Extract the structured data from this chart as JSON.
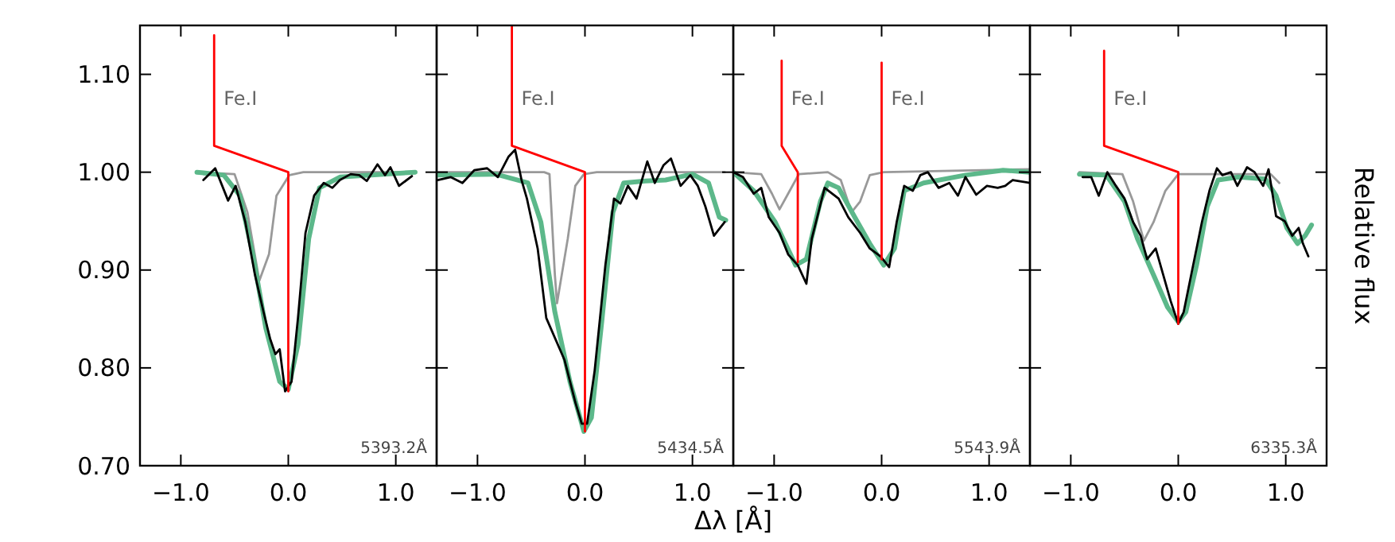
{
  "chart_data": [
    {
      "type": "line",
      "xlim": [
        -1.38,
        1.38
      ],
      "ylim": [
        0.7,
        1.15
      ],
      "xticks": [
        {
          "value": -1,
          "label": "−1.0"
        },
        {
          "value": 0,
          "label": "0.0"
        },
        {
          "value": 1,
          "label": "1.0"
        }
      ],
      "yticks": [
        {
          "value": 0.7,
          "label": "0.70"
        },
        {
          "value": 0.8,
          "label": "0.80"
        },
        {
          "value": 0.9,
          "label": "0.90"
        },
        {
          "value": 1.0,
          "label": "1.00"
        },
        {
          "value": 1.1,
          "label": "1.10"
        }
      ],
      "grid": false,
      "marker": "none",
      "line_style": "solid",
      "series": [
        {
          "color": "#999999",
          "x": [
            -0.85,
            -0.5,
            -0.38,
            -0.27,
            -0.18,
            -0.11,
            0.01,
            0.14,
            1.18
          ],
          "values": [
            1.0,
            0.998,
            0.959,
            0.889,
            0.916,
            0.976,
            0.997,
            1.0,
            1.0
          ]
        },
        {
          "color": "#5cb88a",
          "x": [
            -0.85,
            -0.6,
            -0.45,
            -0.33,
            -0.21,
            -0.08,
            0,
            0.09,
            0.19,
            0.29,
            0.48,
            1.18
          ],
          "values": [
            1.0,
            0.997,
            0.976,
            0.916,
            0.841,
            0.786,
            0.778,
            0.824,
            0.932,
            0.984,
            0.995,
            1.0
          ]
        },
        {
          "color": "#000000",
          "x": [
            -0.79,
            -0.68,
            -0.56,
            -0.49,
            -0.4,
            -0.31,
            -0.23,
            -0.17,
            -0.12,
            -0.08,
            -0.03,
            0.03,
            0.09,
            0.16,
            0.24,
            0.33,
            0.41,
            0.48,
            0.58,
            0.66,
            0.73,
            0.83,
            0.9,
            0.95,
            1.03,
            1.15
          ],
          "values": [
            0.992,
            1.004,
            0.971,
            0.986,
            0.949,
            0.895,
            0.857,
            0.83,
            0.814,
            0.819,
            0.776,
            0.786,
            0.851,
            0.938,
            0.976,
            0.989,
            0.984,
            0.992,
            0.998,
            0.997,
            0.991,
            1.008,
            0.997,
            1.005,
            0.986,
            0.996
          ]
        },
        {
          "color": "#ff0000",
          "x": [
            -0.69,
            -0.69,
            0,
            0
          ],
          "values": [
            1.14,
            1.027,
            1.0,
            0.776
          ]
        }
      ],
      "annotations": [
        "Fe.I",
        "5393.2Å"
      ]
    },
    {
      "type": "line",
      "xlim": [
        -1.38,
        1.38
      ],
      "ylim": [
        0.7,
        1.15
      ],
      "tick_labels": "x",
      "xlabel": "Δλ [Å]",
      "xticks": [
        {
          "value": -1,
          "label": "−1.0"
        },
        {
          "value": 0,
          "label": "0.0"
        },
        {
          "value": 1,
          "label": "1.0"
        }
      ],
      "yticks": [
        {
          "value": 0.7,
          "label": null
        },
        {
          "value": 0.8,
          "label": null
        },
        {
          "value": 0.9,
          "label": null
        },
        {
          "value": 1.0,
          "label": null
        },
        {
          "value": 1.1,
          "label": null
        }
      ],
      "grid": false,
      "marker": "none",
      "line_style": "solid",
      "series": [
        {
          "color": "#999999",
          "x": [
            -1.37,
            -0.38,
            -0.33,
            -0.28,
            -0.26,
            -0.16,
            -0.09,
            -0.01,
            0.11,
            1.3
          ],
          "values": [
            1.0,
            1.0,
            0.998,
            0.895,
            0.866,
            0.932,
            0.986,
            0.998,
            1.0,
            1.0
          ]
        },
        {
          "color": "#5cb88a",
          "x": [
            -1.37,
            -0.83,
            -0.53,
            -0.41,
            -0.28,
            -0.14,
            -0.01,
            0.06,
            0.16,
            0.26,
            0.36,
            0.56,
            0.75,
            1.0,
            1.15,
            1.25,
            1.31
          ],
          "values": [
            0.997,
            0.998,
            0.989,
            0.949,
            0.857,
            0.786,
            0.735,
            0.749,
            0.851,
            0.959,
            0.989,
            0.991,
            0.992,
            0.998,
            0.989,
            0.954,
            0.951
          ]
        },
        {
          "color": "#000000",
          "x": [
            -1.37,
            -1.25,
            -1.14,
            -1.03,
            -0.91,
            -0.81,
            -0.71,
            -0.65,
            -0.59,
            -0.54,
            -0.44,
            -0.36,
            -0.19,
            -0.09,
            -0.03,
            0.02,
            0.09,
            0.19,
            0.27,
            0.33,
            0.4,
            0.48,
            0.58,
            0.65,
            0.73,
            0.8,
            0.89,
            0.98,
            1.05,
            1.12,
            1.2,
            1.3
          ],
          "values": [
            0.992,
            0.995,
            0.989,
            1.002,
            1.004,
            0.995,
            1.016,
            1.023,
            0.992,
            0.973,
            0.922,
            0.851,
            0.808,
            0.765,
            0.743,
            0.743,
            0.797,
            0.905,
            0.973,
            0.968,
            0.986,
            0.973,
            1.011,
            0.989,
            1.007,
            1.014,
            0.986,
            0.997,
            0.986,
            0.965,
            0.935,
            0.949
          ]
        },
        {
          "color": "#ff0000",
          "x": [
            -0.68,
            -0.68,
            0,
            0
          ],
          "values": [
            1.15,
            1.027,
            1.0,
            0.735
          ]
        }
      ],
      "annotations": [
        "Fe.I",
        "5434.5Å"
      ]
    },
    {
      "type": "line",
      "xlim": [
        -1.38,
        1.38
      ],
      "ylim": [
        0.7,
        1.15
      ],
      "tick_labels": "x",
      "xticks": [
        {
          "value": -1,
          "label": "−1.0"
        },
        {
          "value": 0,
          "label": "0.0"
        },
        {
          "value": 1,
          "label": "1.0"
        }
      ],
      "yticks": [
        {
          "value": 0.7,
          "label": null
        },
        {
          "value": 0.8,
          "label": null
        },
        {
          "value": 0.9,
          "label": null
        },
        {
          "value": 1.0,
          "label": null
        },
        {
          "value": 1.1,
          "label": null
        }
      ],
      "grid": false,
      "marker": "none",
      "line_style": "solid",
      "series": [
        {
          "color": "#999999",
          "x": [
            -1.38,
            -1.12,
            -1.02,
            -0.95,
            -0.87,
            -0.77,
            -0.5,
            -0.38,
            -0.28,
            -0.2,
            -0.11,
            0.02,
            1.38
          ],
          "values": [
            1.0,
            0.998,
            0.978,
            0.962,
            0.978,
            0.998,
            1.0,
            0.992,
            0.959,
            0.97,
            0.997,
            1.0,
            1.003
          ]
        },
        {
          "color": "#5cb88a",
          "x": [
            -1.38,
            -1.19,
            -0.99,
            -0.8,
            -0.7,
            -0.57,
            -0.5,
            -0.4,
            -0.25,
            -0.11,
            0.02,
            0.12,
            0.21,
            0.39,
            0.78,
            1.13,
            1.38
          ],
          "values": [
            1.0,
            0.981,
            0.949,
            0.905,
            0.911,
            0.97,
            0.989,
            0.984,
            0.954,
            0.927,
            0.905,
            0.922,
            0.981,
            0.989,
            0.997,
            1.002,
            1.0
          ]
        },
        {
          "color": "#000000",
          "x": [
            -1.38,
            -1.29,
            -1.19,
            -1.12,
            -1.05,
            -0.95,
            -0.87,
            -0.78,
            -0.7,
            -0.65,
            -0.53,
            -0.4,
            -0.31,
            -0.2,
            -0.11,
            -0.01,
            0.07,
            0.14,
            0.21,
            0.29,
            0.36,
            0.43,
            0.53,
            0.63,
            0.71,
            0.78,
            0.88,
            0.98,
            1.08,
            1.15,
            1.22,
            1.38
          ],
          "values": [
            1.0,
            0.995,
            0.978,
            0.984,
            0.954,
            0.938,
            0.916,
            0.905,
            0.886,
            0.932,
            0.984,
            0.973,
            0.954,
            0.938,
            0.922,
            0.914,
            0.903,
            0.949,
            0.986,
            0.981,
            0.997,
            1.0,
            0.984,
            0.989,
            0.976,
            0.995,
            0.977,
            0.986,
            0.984,
            0.986,
            0.992,
            0.989
          ]
        },
        {
          "color": "#ff0000",
          "x": [
            -0.93,
            -0.93,
            -0.78,
            -0.78
          ],
          "values": [
            1.114,
            1.027,
            1.0,
            0.908
          ]
        },
        {
          "color": "#ff0000",
          "x": [
            0,
            0
          ],
          "values": [
            1.112,
            0.911
          ]
        }
      ],
      "annotations": [
        "Fe.I",
        "Fe.I",
        "5543.9Å"
      ]
    },
    {
      "type": "line",
      "xlim": [
        -1.38,
        1.38
      ],
      "ylim": [
        0.7,
        1.15
      ],
      "tick_labels": "x",
      "ylabel": "Relative flux",
      "xticks": [
        {
          "value": -1,
          "label": "−1.0"
        },
        {
          "value": 0,
          "label": "0.0"
        },
        {
          "value": 1,
          "label": "1.0"
        }
      ],
      "yticks": [
        {
          "value": 0.7,
          "label": null
        },
        {
          "value": 0.8,
          "label": null
        },
        {
          "value": 0.9,
          "label": null
        },
        {
          "value": 1.0,
          "label": null
        },
        {
          "value": 1.1,
          "label": null
        }
      ],
      "grid": false,
      "marker": "none",
      "line_style": "solid",
      "series": [
        {
          "color": "#999999",
          "x": [
            -0.92,
            -0.52,
            -0.42,
            -0.32,
            -0.23,
            -0.12,
            0,
            0.86,
            0.94
          ],
          "values": [
            1.0,
            0.998,
            0.97,
            0.93,
            0.949,
            0.981,
            0.998,
            0.998,
            0.989
          ]
        },
        {
          "color": "#5cb88a",
          "x": [
            -0.92,
            -0.67,
            -0.5,
            -0.38,
            -0.23,
            -0.1,
            0,
            0.07,
            0.17,
            0.27,
            0.37,
            0.56,
            0.81,
            0.91,
            1.01,
            1.11,
            1.18,
            1.24
          ],
          "values": [
            0.998,
            0.997,
            0.97,
            0.932,
            0.895,
            0.862,
            0.847,
            0.857,
            0.905,
            0.965,
            0.992,
            0.995,
            0.993,
            0.976,
            0.943,
            0.927,
            0.935,
            0.946
          ]
        },
        {
          "color": "#000000",
          "x": [
            -0.89,
            -0.81,
            -0.74,
            -0.66,
            -0.58,
            -0.5,
            -0.42,
            -0.35,
            -0.29,
            -0.21,
            -0.14,
            -0.07,
            0,
            0.05,
            0.12,
            0.22,
            0.29,
            0.36,
            0.41,
            0.49,
            0.55,
            0.64,
            0.71,
            0.79,
            0.84,
            0.91,
            0.99,
            1.06,
            1.12,
            1.16,
            1.21
          ],
          "values": [
            0.995,
            0.995,
            0.976,
            1.0,
            0.986,
            0.973,
            0.949,
            0.935,
            0.911,
            0.922,
            0.895,
            0.868,
            0.845,
            0.857,
            0.895,
            0.949,
            0.981,
            1.004,
            0.997,
            1.0,
            0.986,
            1.005,
            1.0,
            0.986,
            1.003,
            0.955,
            0.95,
            0.935,
            0.943,
            0.927,
            0.914
          ]
        },
        {
          "color": "#ff0000",
          "x": [
            -0.69,
            -0.69,
            0,
            0
          ],
          "values": [
            1.124,
            1.027,
            1.0,
            0.845
          ]
        }
      ],
      "annotations": [
        "Fe.I",
        "6335.3Å"
      ]
    }
  ]
}
